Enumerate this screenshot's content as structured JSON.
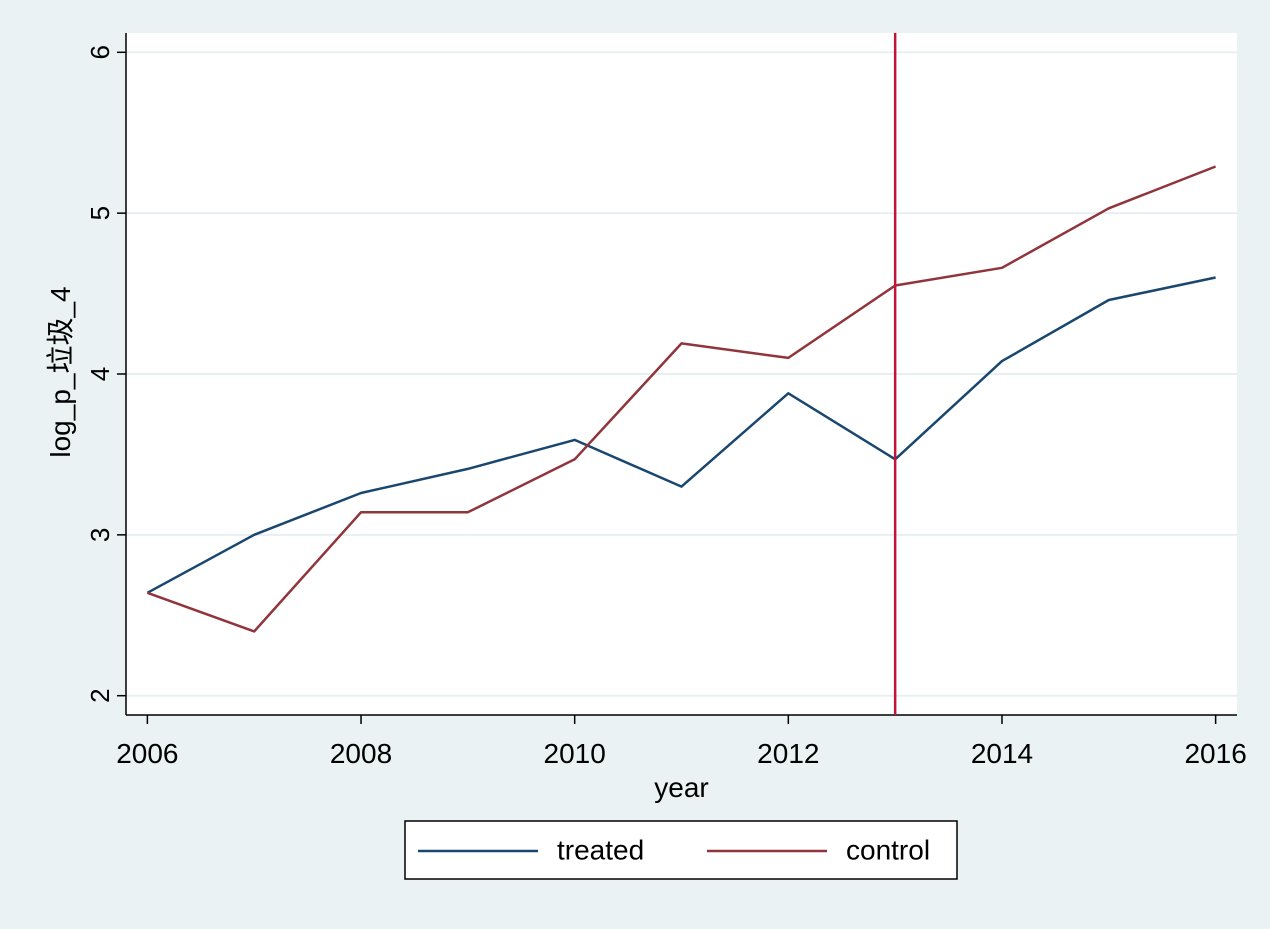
{
  "chart_data": {
    "type": "line",
    "title": "",
    "xlabel": "year",
    "ylabel": "log_p_垃圾_4",
    "x": [
      2006,
      2007,
      2008,
      2009,
      2010,
      2011,
      2012,
      2013,
      2014,
      2015,
      2016
    ],
    "xlim": [
      2005.8,
      2016.2
    ],
    "ylim": [
      1.88,
      6.12
    ],
    "xticks": [
      2006,
      2008,
      2010,
      2012,
      2014,
      2016
    ],
    "yticks": [
      2,
      3,
      4,
      5,
      6
    ],
    "grid": true,
    "reference_line": {
      "x": 2013,
      "color": "#c0143c"
    },
    "legend_position": "bottom",
    "series": [
      {
        "name": "treated",
        "color": "#1a476f",
        "values": [
          2.64,
          3.0,
          3.26,
          3.41,
          3.59,
          3.3,
          3.88,
          3.47,
          4.08,
          4.46,
          4.6
        ]
      },
      {
        "name": "control",
        "color": "#90353b",
        "values": [
          2.64,
          2.4,
          3.14,
          3.14,
          3.47,
          4.19,
          4.1,
          4.55,
          4.66,
          5.03,
          5.29
        ]
      }
    ]
  }
}
